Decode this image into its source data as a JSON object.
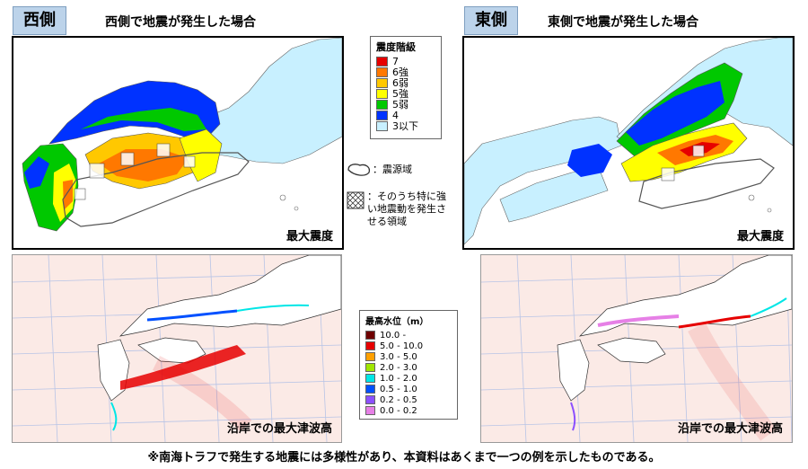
{
  "west": {
    "tag": "西側",
    "title": "西側で地震が発生した場合",
    "intensity_caption": "最大震度",
    "tsunami_caption": "沿岸での最大津波高"
  },
  "east": {
    "tag": "東側",
    "title": "東側で地震が発生した場合",
    "intensity_caption": "最大震度",
    "tsunami_caption": "沿岸での最大津波高"
  },
  "intensity_legend": {
    "title": "震度階級",
    "items": [
      {
        "label": "7",
        "color": "#e60000"
      },
      {
        "label": "6強",
        "color": "#ff7800"
      },
      {
        "label": "6弱",
        "color": "#ffc800"
      },
      {
        "label": "5強",
        "color": "#ffff00"
      },
      {
        "label": "5弱",
        "color": "#00c800"
      },
      {
        "label": "4",
        "color": "#0032ff"
      },
      {
        "label": "3以下",
        "color": "#c8f0ff"
      }
    ]
  },
  "source_notes": {
    "source_area": "：震源域",
    "strong_area": "：そのうち特に強い地震動を発生させる領域"
  },
  "tsunami_legend": {
    "title": "最高水位（m）",
    "items": [
      {
        "label": "10.0 -",
        "color": "#6e0000"
      },
      {
        "label": "5.0 - 10.0",
        "color": "#e60000"
      },
      {
        "label": "3.0 - 5.0",
        "color": "#ffa000"
      },
      {
        "label": "2.0 - 3.0",
        "color": "#a0e600"
      },
      {
        "label": "1.0 - 2.0",
        "color": "#00e6e6"
      },
      {
        "label": "0.5 - 1.0",
        "color": "#0050ff"
      },
      {
        "label": "0.2 - 0.5",
        "color": "#8c50ff"
      },
      {
        "label": "0.0 - 0.2",
        "color": "#e680e6"
      }
    ]
  },
  "footnote": "※南海トラフで発生する地震には多様性があり、本資料はあくまで一つの例を示したものである。"
}
